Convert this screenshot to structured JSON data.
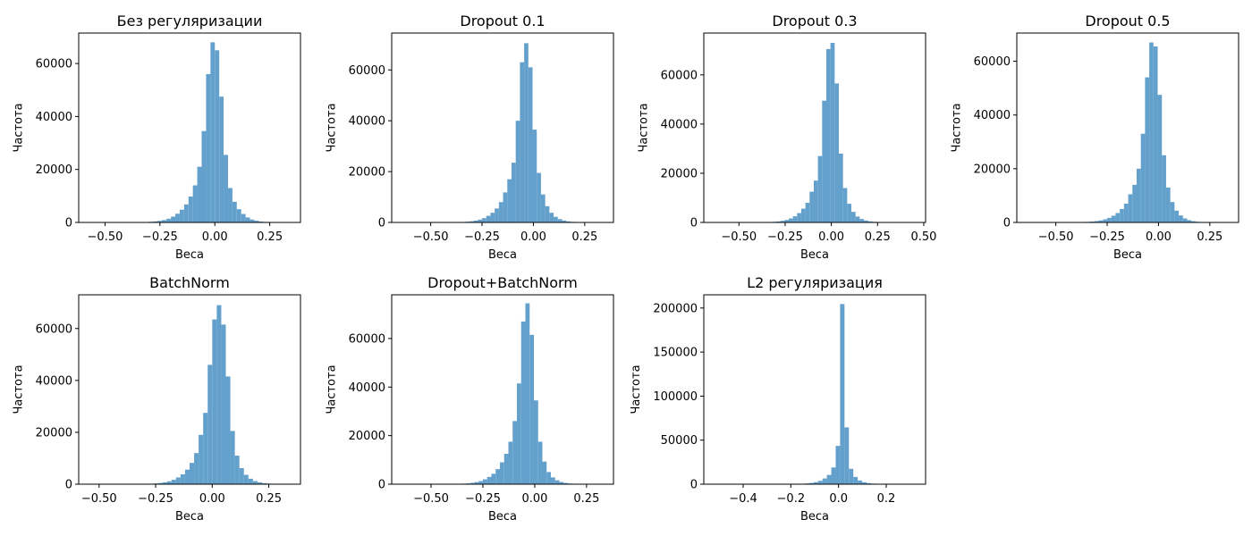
{
  "figure": {
    "axis_xlabel": "Веса",
    "axis_ylabel": "Частота",
    "bar_color": "#63a0cc",
    "spine_color": "#000000"
  },
  "chart_data": [
    {
      "type": "bar",
      "title": "Без регуляризации",
      "xlabel": "Веса",
      "ylabel": "Частота",
      "xlim": [
        -0.62,
        0.39
      ],
      "ylim": [
        0,
        71500
      ],
      "xticks": [
        -0.5,
        -0.25,
        0.0,
        0.25
      ],
      "xtick_labels": [
        "−0.50",
        "−0.25",
        "0.00",
        "0.25"
      ],
      "yticks": [
        0,
        20000,
        40000,
        60000
      ],
      "ytick_labels": [
        "0",
        "20000",
        "40000",
        "60000"
      ],
      "bin_width": 0.02,
      "bin_starts": [
        -0.6,
        -0.58,
        -0.56,
        -0.54,
        -0.52,
        -0.5,
        -0.48,
        -0.46,
        -0.44,
        -0.42,
        -0.4,
        -0.38,
        -0.36,
        -0.34,
        -0.32,
        -0.3,
        -0.28,
        -0.26,
        -0.24,
        -0.22,
        -0.2,
        -0.18,
        -0.16,
        -0.14,
        -0.12,
        -0.1,
        -0.08,
        -0.06,
        -0.04,
        -0.02,
        0.0,
        0.02,
        0.04,
        0.06,
        0.08,
        0.1,
        0.12,
        0.14,
        0.16,
        0.18,
        0.2,
        0.22,
        0.24,
        0.26,
        0.28,
        0.3,
        0.32,
        0.34
      ],
      "values": [
        0,
        0,
        0,
        0,
        0,
        0,
        0,
        0,
        0,
        0,
        50,
        60,
        80,
        100,
        150,
        250,
        400,
        600,
        900,
        1400,
        2200,
        3300,
        4800,
        6800,
        9800,
        14000,
        21000,
        34500,
        56000,
        68000,
        65000,
        47500,
        25500,
        13000,
        7800,
        5000,
        3200,
        1900,
        1100,
        650,
        350,
        200,
        100,
        60,
        30,
        20,
        10,
        5
      ]
    },
    {
      "type": "bar",
      "title": "Dropout 0.1",
      "xlabel": "Веса",
      "ylabel": "Частота",
      "xlim": [
        -0.69,
        0.39
      ],
      "ylim": [
        0,
        74500
      ],
      "xticks": [
        -0.5,
        -0.25,
        0.0,
        0.25
      ],
      "xtick_labels": [
        "−0.50",
        "−0.25",
        "0.00",
        "0.25"
      ],
      "yticks": [
        0,
        20000,
        40000,
        60000
      ],
      "ytick_labels": [
        "0",
        "20000",
        "40000",
        "60000"
      ],
      "bin_width": 0.0205,
      "bin_starts": [
        -0.66,
        -0.6395,
        -0.619,
        -0.5985,
        -0.578,
        -0.5575,
        -0.537,
        -0.5165,
        -0.496,
        -0.4755,
        -0.455,
        -0.4345,
        -0.414,
        -0.3935,
        -0.373,
        -0.3525,
        -0.332,
        -0.3115,
        -0.291,
        -0.2705,
        -0.25,
        -0.2295,
        -0.209,
        -0.1885,
        -0.168,
        -0.1475,
        -0.127,
        -0.1065,
        -0.086,
        -0.0655,
        -0.045,
        -0.0245,
        -0.004,
        0.0165,
        0.037,
        0.0575,
        0.078,
        0.0985,
        0.119,
        0.1395,
        0.16,
        0.1805,
        0.201,
        0.2215,
        0.242,
        0.2625,
        0.283,
        0.3035
      ],
      "values": [
        0,
        0,
        0,
        0,
        0,
        0,
        0,
        0,
        0,
        0,
        0,
        40,
        60,
        80,
        120,
        180,
        280,
        450,
        700,
        1100,
        1700,
        2600,
        3800,
        5500,
        8000,
        11800,
        17000,
        23500,
        40000,
        63000,
        70500,
        61000,
        36500,
        19500,
        11000,
        6400,
        3800,
        2200,
        1300,
        750,
        420,
        230,
        120,
        70,
        40,
        20,
        10,
        5
      ]
    },
    {
      "type": "bar",
      "title": "Dropout 0.3",
      "xlabel": "Веса",
      "ylabel": "Частота",
      "xlim": [
        -0.69,
        0.51
      ],
      "ylim": [
        0,
        77000
      ],
      "xticks": [
        -0.5,
        -0.25,
        0.0,
        0.25,
        0.5
      ],
      "xtick_labels": [
        "−0.50",
        "−0.25",
        "0.00",
        "0.25",
        "0.50"
      ],
      "yticks": [
        0,
        20000,
        40000,
        60000
      ],
      "ytick_labels": [
        "0",
        "20000",
        "40000",
        "60000"
      ],
      "bin_width": 0.0226,
      "bin_starts": [
        -0.66,
        -0.6374,
        -0.6148,
        -0.5922,
        -0.5696,
        -0.547,
        -0.5244,
        -0.5018,
        -0.4792,
        -0.4566,
        -0.434,
        -0.4114,
        -0.3888,
        -0.3662,
        -0.3436,
        -0.321,
        -0.2984,
        -0.2758,
        -0.2532,
        -0.2306,
        -0.208,
        -0.1854,
        -0.1628,
        -0.1402,
        -0.1176,
        -0.095,
        -0.0724,
        -0.0498,
        -0.0272,
        -0.0046,
        0.018,
        0.0406,
        0.0632,
        0.0858,
        0.1084,
        0.131,
        0.1536,
        0.1762,
        0.1988,
        0.2214,
        0.244,
        0.2666,
        0.2892,
        0.3118,
        0.3344,
        0.357,
        0.3796,
        0.4022
      ],
      "values": [
        0,
        0,
        0,
        0,
        0,
        0,
        0,
        0,
        0,
        0,
        0,
        40,
        60,
        100,
        150,
        250,
        400,
        650,
        1000,
        1600,
        2500,
        3800,
        5600,
        8000,
        12500,
        17000,
        27000,
        49500,
        70500,
        73000,
        56500,
        28000,
        14000,
        7600,
        4300,
        2400,
        1400,
        800,
        450,
        250,
        140,
        80,
        40,
        20,
        10,
        5,
        0,
        0
      ]
    },
    {
      "type": "bar",
      "title": "Dropout 0.5",
      "xlabel": "Веса",
      "ylabel": "Частота",
      "xlim": [
        -0.69,
        0.39
      ],
      "ylim": [
        0,
        70500
      ],
      "xticks": [
        -0.5,
        -0.25,
        0.0,
        0.25
      ],
      "xtick_labels": [
        "−0.50",
        "−0.25",
        "0.00",
        "0.25"
      ],
      "yticks": [
        0,
        20000,
        40000,
        60000
      ],
      "ytick_labels": [
        "0",
        "20000",
        "40000",
        "60000"
      ],
      "bin_width": 0.0205,
      "bin_starts": [
        -0.66,
        -0.6395,
        -0.619,
        -0.5985,
        -0.578,
        -0.5575,
        -0.537,
        -0.5165,
        -0.496,
        -0.4755,
        -0.455,
        -0.4345,
        -0.414,
        -0.3935,
        -0.373,
        -0.3525,
        -0.332,
        -0.3115,
        -0.291,
        -0.2705,
        -0.25,
        -0.2295,
        -0.209,
        -0.1885,
        -0.168,
        -0.1475,
        -0.127,
        -0.1065,
        -0.086,
        -0.0655,
        -0.045,
        -0.0245,
        -0.004,
        0.0165,
        0.037,
        0.0575,
        0.078,
        0.0985,
        0.119,
        0.1395,
        0.16,
        0.1805,
        0.201,
        0.2215,
        0.242,
        0.2625,
        0.283,
        0.3035
      ],
      "values": [
        0,
        0,
        0,
        0,
        0,
        0,
        0,
        0,
        0,
        0,
        0,
        40,
        60,
        90,
        140,
        210,
        320,
        500,
        750,
        1150,
        1700,
        2500,
        3500,
        5000,
        7000,
        10500,
        14000,
        20000,
        33000,
        54000,
        67000,
        65500,
        47500,
        25000,
        13000,
        7600,
        4400,
        2600,
        1500,
        850,
        470,
        250,
        130,
        70,
        35,
        20,
        10,
        5
      ]
    },
    {
      "type": "bar",
      "title": "BatchNorm",
      "xlabel": "Веса",
      "ylabel": "Частота",
      "xlim": [
        -0.59,
        0.39
      ],
      "ylim": [
        0,
        73000
      ],
      "xticks": [
        -0.5,
        -0.25,
        0.0,
        0.25
      ],
      "xtick_labels": [
        "−0.50",
        "−0.25",
        "0.00",
        "0.25"
      ],
      "yticks": [
        0,
        20000,
        40000,
        60000
      ],
      "ytick_labels": [
        "0",
        "20000",
        "40000",
        "60000"
      ],
      "bin_width": 0.02,
      "bin_starts": [
        -0.56,
        -0.54,
        -0.52,
        -0.5,
        -0.48,
        -0.46,
        -0.44,
        -0.42,
        -0.4,
        -0.38,
        -0.36,
        -0.34,
        -0.32,
        -0.3,
        -0.28,
        -0.26,
        -0.24,
        -0.22,
        -0.2,
        -0.18,
        -0.16,
        -0.14,
        -0.12,
        -0.1,
        -0.08,
        -0.06,
        -0.04,
        -0.02,
        0.0,
        0.02,
        0.04,
        0.06,
        0.08,
        0.1,
        0.12,
        0.14,
        0.16,
        0.18,
        0.2,
        0.22,
        0.24,
        0.26,
        0.28,
        0.3,
        0.32,
        0.34,
        0.36,
        0.38
      ],
      "values": [
        0,
        0,
        0,
        0,
        0,
        0,
        0,
        0,
        0,
        0,
        40,
        60,
        80,
        120,
        180,
        280,
        450,
        700,
        1100,
        1700,
        2600,
        3800,
        5600,
        8200,
        12000,
        19000,
        27500,
        46000,
        63500,
        69000,
        61500,
        41500,
        20500,
        11000,
        6200,
        3600,
        2100,
        1200,
        700,
        400,
        230,
        130,
        70,
        35,
        15,
        8,
        0,
        0
      ]
    },
    {
      "type": "bar",
      "title": "Dropout+BatchNorm",
      "xlabel": "Веса",
      "ylabel": "Частота",
      "xlim": [
        -0.69,
        0.38
      ],
      "ylim": [
        0,
        78000
      ],
      "xticks": [
        -0.5,
        -0.25,
        0.0,
        0.25
      ],
      "xtick_labels": [
        "−0.50",
        "−0.25",
        "0.00",
        "0.25"
      ],
      "yticks": [
        0,
        20000,
        40000,
        60000
      ],
      "ytick_labels": [
        "0",
        "20000",
        "40000",
        "60000"
      ],
      "bin_width": 0.0205,
      "bin_starts": [
        -0.66,
        -0.6395,
        -0.619,
        -0.5985,
        -0.578,
        -0.5575,
        -0.537,
        -0.5165,
        -0.496,
        -0.4755,
        -0.455,
        -0.4345,
        -0.414,
        -0.3935,
        -0.373,
        -0.3525,
        -0.332,
        -0.3115,
        -0.291,
        -0.2705,
        -0.25,
        -0.2295,
        -0.209,
        -0.1885,
        -0.168,
        -0.1475,
        -0.127,
        -0.1065,
        -0.086,
        -0.0655,
        -0.045,
        -0.0245,
        -0.004,
        0.0165,
        0.037,
        0.0575,
        0.078,
        0.0985,
        0.119,
        0.1395,
        0.16,
        0.1805,
        0.201,
        0.2215,
        0.242,
        0.2625,
        0.283,
        0.3035
      ],
      "values": [
        0,
        0,
        0,
        0,
        0,
        0,
        0,
        0,
        0,
        0,
        0,
        40,
        60,
        90,
        140,
        220,
        340,
        550,
        850,
        1300,
        2000,
        3000,
        4300,
        6200,
        9000,
        12500,
        17500,
        26000,
        41500,
        67000,
        74500,
        61500,
        34500,
        17500,
        9300,
        5000,
        2800,
        1600,
        900,
        500,
        280,
        150,
        80,
        40,
        20,
        10,
        5,
        0
      ]
    },
    {
      "type": "bar",
      "title": "L2 регуляризация",
      "xlabel": "Веса",
      "ylabel": "Частота",
      "xlim": [
        -0.565,
        0.365
      ],
      "ylim": [
        0,
        215000
      ],
      "xticks": [
        -0.4,
        -0.2,
        0.0,
        0.2
      ],
      "xtick_labels": [
        "−0.4",
        "−0.2",
        "0.0",
        "0.2"
      ],
      "yticks": [
        0,
        50000,
        100000,
        150000,
        200000
      ],
      "ytick_labels": [
        "0",
        "50000",
        "100000",
        "150000",
        "200000"
      ],
      "bin_width": 0.0185,
      "bin_starts": [
        -0.53,
        -0.5115,
        -0.493,
        -0.4745,
        -0.456,
        -0.4375,
        -0.419,
        -0.4005,
        -0.382,
        -0.3635,
        -0.345,
        -0.3265,
        -0.308,
        -0.2895,
        -0.271,
        -0.2525,
        -0.234,
        -0.2155,
        -0.197,
        -0.1785,
        -0.16,
        -0.1415,
        -0.123,
        -0.1045,
        -0.086,
        -0.0675,
        -0.049,
        -0.0305,
        -0.012,
        0.0065,
        0.025,
        0.0435,
        0.062,
        0.0805,
        0.099,
        0.1175,
        0.136,
        0.1545,
        0.173,
        0.1915,
        0.21,
        0.2285,
        0.247,
        0.2655,
        0.284,
        0.3025,
        0.321,
        0.3395
      ],
      "values": [
        0,
        0,
        0,
        0,
        0,
        0,
        0,
        0,
        0,
        0,
        0,
        0,
        0,
        0,
        0,
        30,
        60,
        100,
        180,
        300,
        500,
        850,
        1400,
        2300,
        3800,
        6500,
        10500,
        19000,
        43500,
        204500,
        64500,
        17500,
        8200,
        4200,
        2200,
        1200,
        650,
        350,
        180,
        90,
        45,
        20,
        10,
        5,
        0,
        0,
        0,
        0
      ]
    }
  ]
}
